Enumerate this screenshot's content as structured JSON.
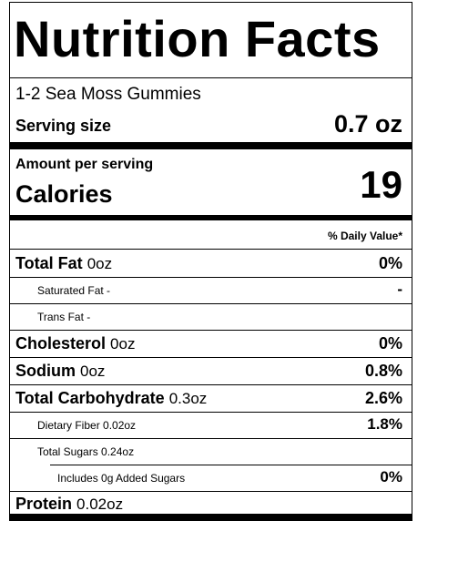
{
  "title": "Nutrition Facts",
  "servings_text": "1-2 Sea Moss Gummies",
  "serving_size_label": "Serving size",
  "serving_size_value": "0.7 oz",
  "amount_per_serving": "Amount per serving",
  "calories_label": "Calories",
  "calories_value": "19",
  "daily_value_header": "% Daily Value*",
  "nutrients": {
    "total_fat": {
      "label": "Total Fat",
      "amount": "0oz",
      "dv": "0%"
    },
    "saturated_fat": {
      "label": "Saturated Fat -",
      "dv": "-"
    },
    "trans_fat": {
      "label": "Trans Fat -"
    },
    "cholesterol": {
      "label": "Cholesterol",
      "amount": "0oz",
      "dv": "0%"
    },
    "sodium": {
      "label": "Sodium",
      "amount": "0oz",
      "dv": "0.8%"
    },
    "total_carbohydrate": {
      "label": "Total Carbohydrate",
      "amount": "0.3oz",
      "dv": "2.6%"
    },
    "dietary_fiber": {
      "label": "Dietary Fiber 0.02oz",
      "dv": "1.8%"
    },
    "total_sugars": {
      "label": "Total Sugars 0.24oz"
    },
    "added_sugars": {
      "label": "Includes 0g Added Sugars",
      "dv": "0%"
    },
    "protein": {
      "label": "Protein",
      "amount": "0.02oz"
    }
  }
}
